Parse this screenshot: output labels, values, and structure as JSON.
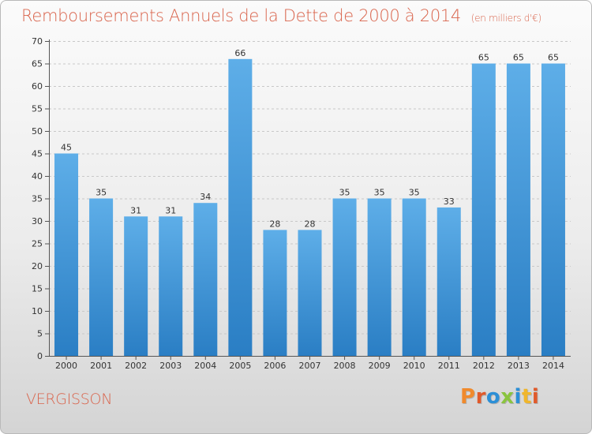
{
  "header": {
    "title": "Remboursements Annuels de la Dette de 2000 à 2014",
    "unit": "(en milliers d'€)"
  },
  "footer": {
    "town": "VERGISSON",
    "logo": "Proxiti"
  },
  "colors": {
    "title": "#d9644c",
    "bar_light": "#5eaee8",
    "bar_dark": "#2a7ec4",
    "logo_letters": [
      "#f08a2c",
      "#e05a2b",
      "#2c8fd6",
      "#8ac43f",
      "#2c8fd6",
      "#f0b62c",
      "#e05a2b"
    ]
  },
  "chart_data": {
    "type": "bar",
    "title": "Remboursements Annuels de la Dette de 2000 à 2014",
    "subtitle": "(en milliers d'€)",
    "xlabel": "",
    "ylabel": "",
    "categories": [
      "2000",
      "2001",
      "2002",
      "2003",
      "2004",
      "2005",
      "2006",
      "2007",
      "2008",
      "2009",
      "2010",
      "2011",
      "2012",
      "2013",
      "2014"
    ],
    "values": [
      45,
      35,
      31,
      31,
      34,
      66,
      28,
      28,
      35,
      35,
      35,
      33,
      65,
      65,
      65
    ],
    "ylim": [
      0,
      70
    ],
    "yticks": [
      0,
      5,
      10,
      15,
      20,
      25,
      30,
      35,
      40,
      45,
      50,
      55,
      60,
      65,
      70
    ],
    "grid": true,
    "data_labels": true
  }
}
